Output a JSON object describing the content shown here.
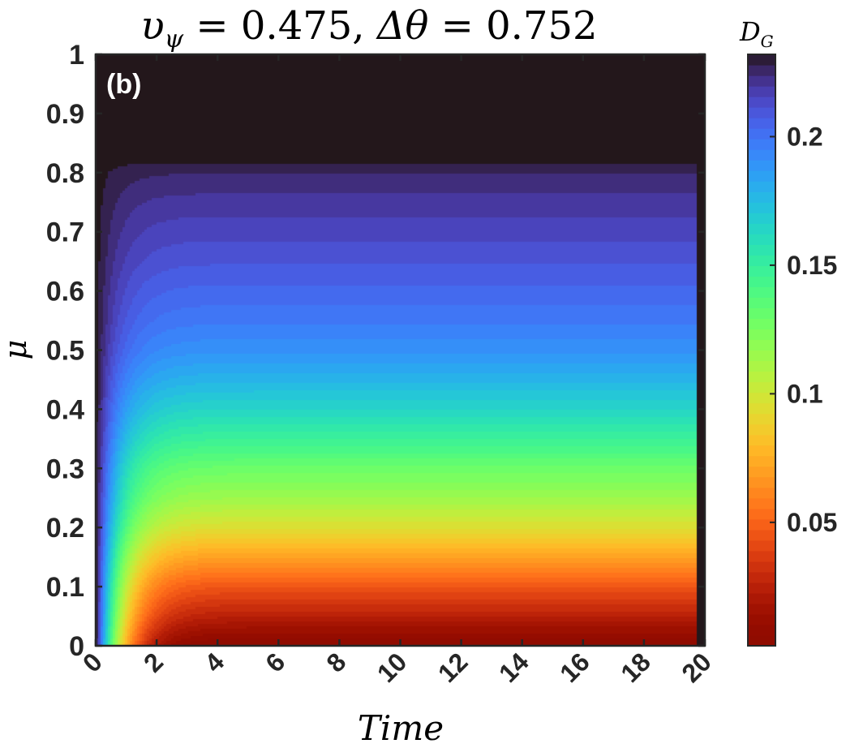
{
  "chart_data": {
    "type": "heatmap",
    "title_parts": {
      "sym1": "υ",
      "sub1": "ψ",
      "eq1": " = 0.475, ",
      "sym2": "Δθ",
      "eq2": " = 0.752"
    },
    "panel_label": "(b)",
    "xlabel": "Time",
    "ylabel": "μ",
    "xlim": [
      0,
      20
    ],
    "ylim": [
      0,
      1
    ],
    "xticks": [
      "0",
      "2",
      "4",
      "6",
      "8",
      "10",
      "12",
      "14",
      "16",
      "18",
      "20"
    ],
    "yticks": [
      "0",
      "0.1",
      "0.2",
      "0.3",
      "0.4",
      "0.5",
      "0.6",
      "0.7",
      "0.8",
      "0.9",
      "1"
    ],
    "colorbar": {
      "label_main": "D",
      "label_sub": "G",
      "range": [
        0.002,
        0.232
      ],
      "ticks": [
        "0.05",
        "0.1",
        "0.15",
        "0.2"
      ],
      "tick_values": [
        0.05,
        0.1,
        0.15,
        0.2
      ],
      "colormap": "turbo"
    },
    "steady_state_profile": {
      "mu": [
        0.0,
        0.05,
        0.1,
        0.15,
        0.2,
        0.25,
        0.3,
        0.35,
        0.4,
        0.45,
        0.5,
        0.55,
        0.6,
        0.65,
        0.7,
        0.75,
        0.8,
        0.825
      ],
      "value": [
        0.002,
        0.025,
        0.045,
        0.07,
        0.095,
        0.115,
        0.13,
        0.148,
        0.164,
        0.178,
        0.19,
        0.198,
        0.204,
        0.21,
        0.215,
        0.22,
        0.226,
        0.232
      ]
    },
    "transient_time_constant": 0.9,
    "levels": 56
  }
}
